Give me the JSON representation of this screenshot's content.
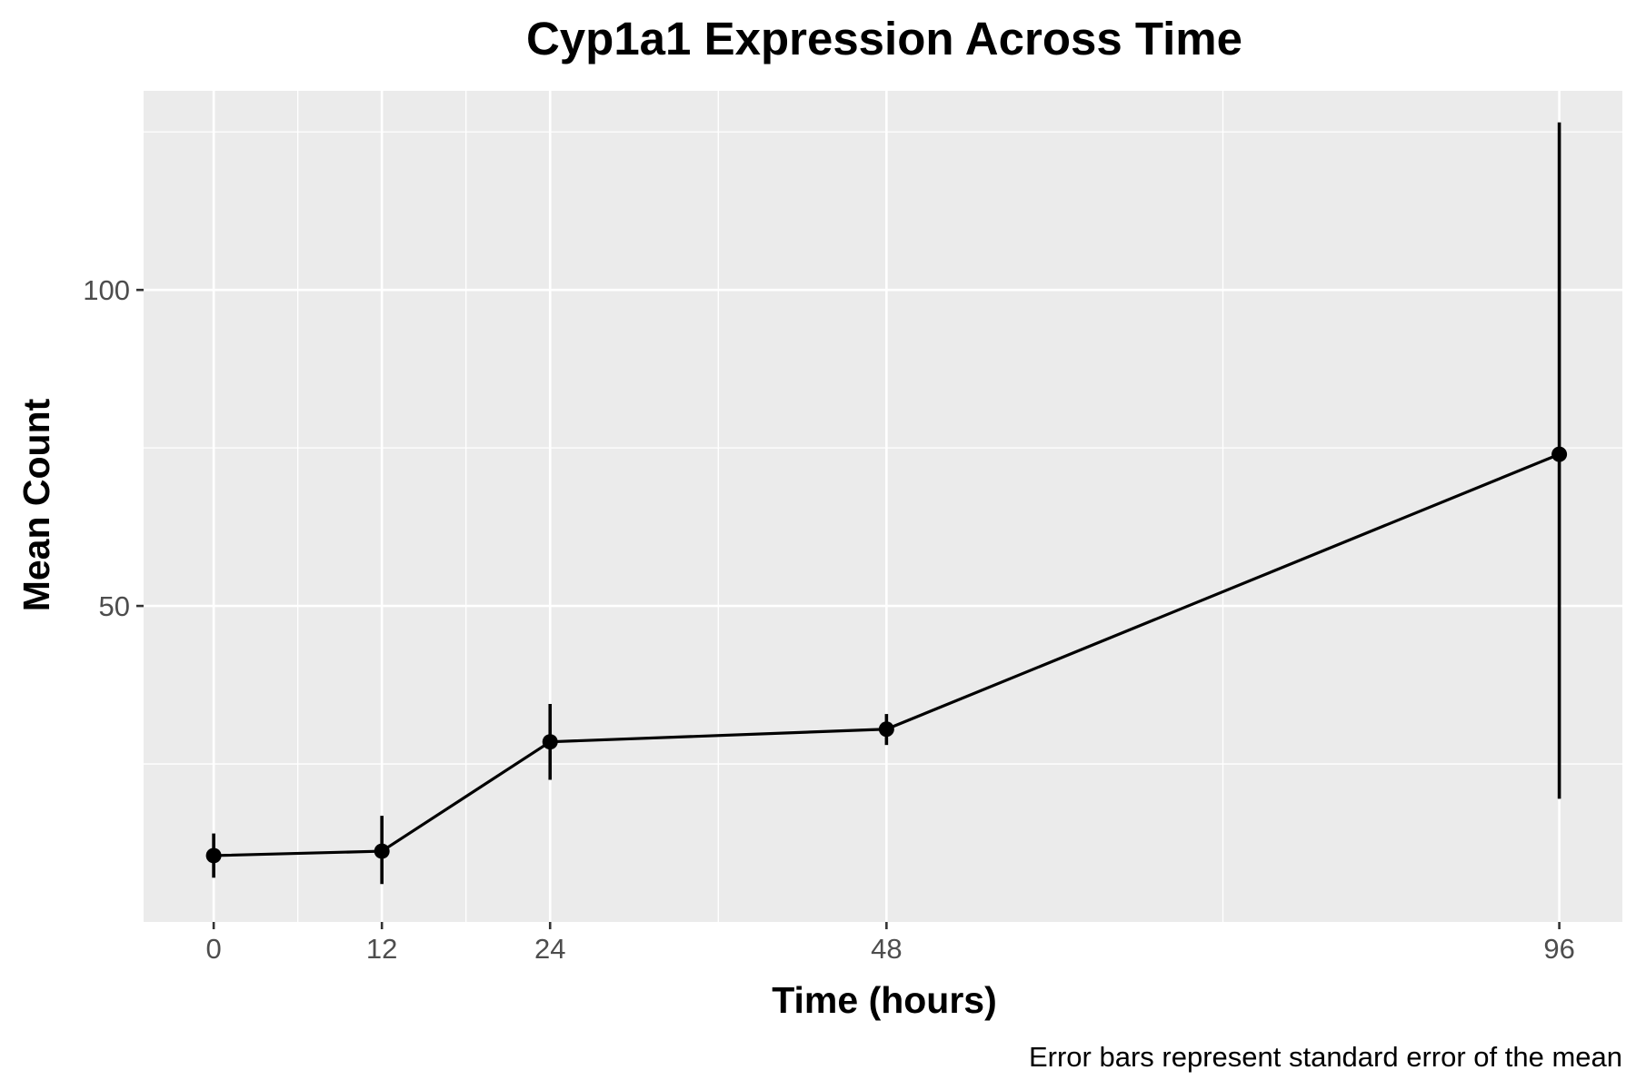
{
  "chart_data": {
    "type": "line",
    "title": "Cyp1a1 Expression Across Time",
    "xlabel": "Time (hours)",
    "ylabel": "Mean Count",
    "caption": "Error bars represent standard error of the mean",
    "x_ticks": [
      0,
      12,
      24,
      48,
      96
    ],
    "y_ticks": [
      50,
      100
    ],
    "xlim": [
      -5,
      100.5
    ],
    "ylim": [
      0,
      131.5
    ],
    "grid": true,
    "legend": "none",
    "series": [
      {
        "x": [
          0,
          12,
          24,
          48,
          96
        ],
        "y": [
          10.5,
          11.2,
          28.5,
          30.5,
          74.0
        ],
        "error_low": [
          7.0,
          6.0,
          22.5,
          28.0,
          19.5
        ],
        "error_high": [
          14.0,
          16.8,
          34.5,
          32.9,
          126.5
        ]
      }
    ],
    "colors": {
      "panel": "#ebebeb",
      "grid": "#ffffff",
      "line": "#000000",
      "tick": "#333333",
      "tick_label": "#4d4d4d"
    }
  }
}
